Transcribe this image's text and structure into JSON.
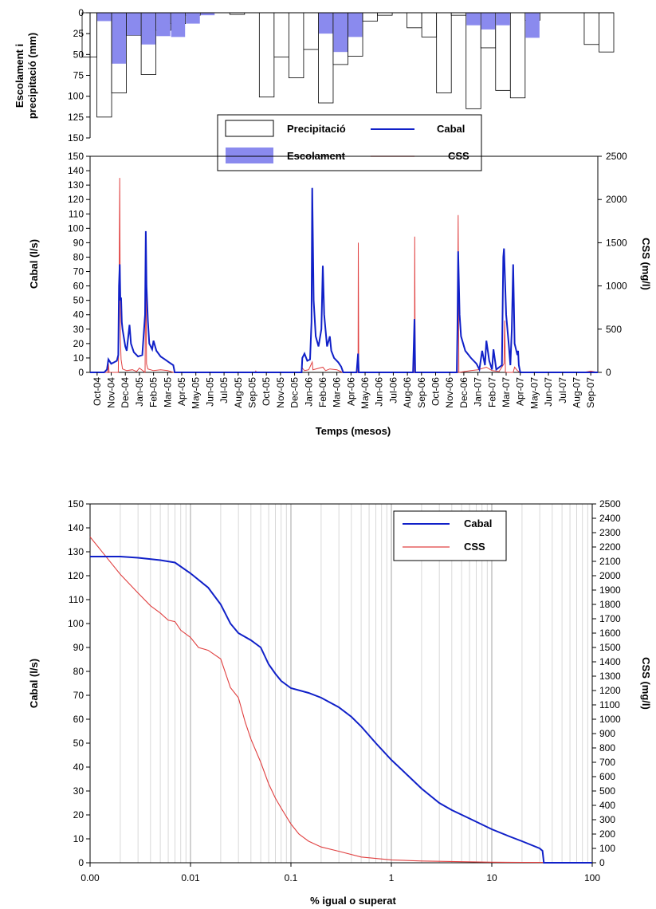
{
  "colors": {
    "precip_fill": "#ffffff",
    "runoff_fill": "#8a8aee",
    "flow": "#1020c8",
    "css": "#e04040",
    "grid": "#c8c8c8"
  },
  "chart_data": [
    {
      "type": "bar",
      "title": "",
      "ylabel_line1": "Escolament i",
      "ylabel_line2": "precipitació (mm)",
      "ylim": [
        150,
        0
      ],
      "yticks": [
        "0",
        "25",
        "50",
        "75",
        "100",
        "125",
        "150"
      ],
      "y_inverted": true,
      "grid": false,
      "series": [
        {
          "name": "Precipitació",
          "values": [
            53,
            125,
            96,
            27,
            74,
            21,
            13,
            3,
            0,
            0,
            2,
            0,
            101,
            53,
            78,
            44,
            108,
            62,
            52,
            10,
            3,
            0,
            18,
            29,
            96,
            3,
            115,
            42,
            93,
            102,
            9,
            0,
            0,
            0,
            38,
            47
          ]
        },
        {
          "name": "Escolament",
          "values": [
            0,
            10,
            61,
            27,
            38,
            28,
            29,
            13,
            3,
            0,
            0,
            0,
            0,
            0,
            0,
            0,
            25,
            47,
            29,
            0,
            0,
            0,
            0,
            0,
            0,
            0,
            15,
            20,
            15,
            0,
            30,
            0,
            0,
            0,
            0,
            0
          ]
        }
      ],
      "legend": {
        "placement": "bottom-center",
        "items": [
          {
            "label": "Precipitació",
            "kind": "empty-box"
          },
          {
            "label": "Cabal",
            "kind": "blue-line"
          },
          {
            "label": "Escolament",
            "kind": "filled-box"
          },
          {
            "label": "CSS",
            "kind": "red-line"
          }
        ]
      }
    },
    {
      "type": "line",
      "xlabel": "Temps (mesos)",
      "ylabel": "Cabal (l/s)",
      "ylabel_right": "CSS (mg/l)",
      "ylim": [
        0,
        150
      ],
      "ylim_right": [
        0,
        2500
      ],
      "yticks": [
        "0",
        "10",
        "20",
        "30",
        "40",
        "50",
        "60",
        "70",
        "80",
        "90",
        "100",
        "110",
        "120",
        "130",
        "140",
        "150"
      ],
      "yticks_right": [
        "0",
        "500",
        "1000",
        "1500",
        "2000",
        "2500"
      ],
      "grid": false,
      "x_months": [
        "Oct-04",
        "Nov-04",
        "Dec-04",
        "Jan-05",
        "Feb-05",
        "Mar-05",
        "Apr-05",
        "May-05",
        "Jun-05",
        "Jul-05",
        "Aug-05",
        "Sep-05",
        "Oct-05",
        "Nov-05",
        "Dec-05",
        "Jan-06",
        "Feb-06",
        "Mar-06",
        "Apr-06",
        "May-06",
        "Jun-06",
        "Jul-06",
        "Aug-06",
        "Sep-06",
        "Oct-06",
        "Nov-06",
        "Dec-06",
        "Jan-07",
        "Feb-07",
        "Mar-07",
        "Apr-07",
        "May-07",
        "Jun-07",
        "Jul-07",
        "Aug-07",
        "Sep-07"
      ],
      "series": [
        {
          "name": "Cabal",
          "axis": "left",
          "points": [
            [
              0,
              0
            ],
            [
              1,
              0
            ],
            [
              1.2,
              2
            ],
            [
              1.3,
              9
            ],
            [
              1.5,
              6
            ],
            [
              1.7,
              7
            ],
            [
              1.9,
              8
            ],
            [
              2.0,
              12
            ],
            [
              2.05,
              60
            ],
            [
              2.1,
              75
            ],
            [
              2.15,
              50
            ],
            [
              2.2,
              52
            ],
            [
              2.25,
              35
            ],
            [
              2.3,
              30
            ],
            [
              2.5,
              18
            ],
            [
              2.6,
              15
            ],
            [
              2.8,
              33
            ],
            [
              2.9,
              20
            ],
            [
              3.1,
              14
            ],
            [
              3.4,
              11
            ],
            [
              3.7,
              12
            ],
            [
              3.9,
              40
            ],
            [
              3.95,
              98
            ],
            [
              4.0,
              60
            ],
            [
              4.1,
              36
            ],
            [
              4.2,
              20
            ],
            [
              4.4,
              16
            ],
            [
              4.5,
              22
            ],
            [
              4.7,
              15
            ],
            [
              5.0,
              11
            ],
            [
              5.3,
              9
            ],
            [
              5.6,
              7
            ],
            [
              5.9,
              5
            ],
            [
              6.0,
              0
            ],
            [
              10,
              0
            ],
            [
              14,
              0
            ],
            [
              15.0,
              0
            ],
            [
              15.05,
              10
            ],
            [
              15.2,
              13
            ],
            [
              15.4,
              8
            ],
            [
              15.6,
              9
            ],
            [
              15.7,
              35
            ],
            [
              15.75,
              128
            ],
            [
              15.85,
              50
            ],
            [
              16.0,
              25
            ],
            [
              16.2,
              18
            ],
            [
              16.4,
              30
            ],
            [
              16.5,
              74
            ],
            [
              16.6,
              40
            ],
            [
              16.8,
              18
            ],
            [
              17.0,
              25
            ],
            [
              17.1,
              15
            ],
            [
              17.3,
              10
            ],
            [
              17.6,
              7
            ],
            [
              17.8,
              4
            ],
            [
              17.95,
              0
            ],
            [
              18.9,
              0
            ],
            [
              19.0,
              13
            ],
            [
              19.05,
              0
            ],
            [
              22.9,
              0
            ],
            [
              23.0,
              37
            ],
            [
              23.05,
              0
            ],
            [
              26.0,
              0
            ],
            [
              26.05,
              30
            ],
            [
              26.1,
              84
            ],
            [
              26.2,
              40
            ],
            [
              26.3,
              25
            ],
            [
              26.6,
              15
            ],
            [
              27.0,
              10
            ],
            [
              27.4,
              6
            ],
            [
              27.6,
              2
            ],
            [
              27.8,
              15
            ],
            [
              28.0,
              5
            ],
            [
              28.1,
              22
            ],
            [
              28.3,
              8
            ],
            [
              28.5,
              2
            ],
            [
              28.6,
              16
            ],
            [
              28.8,
              2
            ],
            [
              29.2,
              5
            ],
            [
              29.3,
              80
            ],
            [
              29.35,
              86
            ],
            [
              29.5,
              40
            ],
            [
              29.7,
              18
            ],
            [
              29.8,
              5
            ],
            [
              29.9,
              30
            ],
            [
              30.0,
              75
            ],
            [
              30.1,
              20
            ],
            [
              30.3,
              12
            ],
            [
              30.35,
              15
            ],
            [
              30.4,
              5
            ],
            [
              30.5,
              0
            ],
            [
              36,
              0
            ]
          ]
        },
        {
          "name": "CSS",
          "axis": "right",
          "points": [
            [
              0,
              0
            ],
            [
              1.25,
              0
            ],
            [
              1.3,
              100
            ],
            [
              1.35,
              0
            ],
            [
              2.0,
              0
            ],
            [
              2.05,
              700
            ],
            [
              2.1,
              2250
            ],
            [
              2.15,
              400
            ],
            [
              2.2,
              150
            ],
            [
              2.3,
              40
            ],
            [
              2.6,
              20
            ],
            [
              3.0,
              30
            ],
            [
              3.3,
              10
            ],
            [
              3.5,
              50
            ],
            [
              3.9,
              0
            ],
            [
              3.95,
              1400
            ],
            [
              4.0,
              100
            ],
            [
              4.1,
              40
            ],
            [
              4.5,
              20
            ],
            [
              5.0,
              30
            ],
            [
              5.5,
              20
            ],
            [
              5.9,
              0
            ],
            [
              11.7,
              0
            ],
            [
              11.75,
              15
            ],
            [
              11.8,
              0
            ],
            [
              15.0,
              0
            ],
            [
              15.05,
              50
            ],
            [
              15.2,
              20
            ],
            [
              15.5,
              30
            ],
            [
              15.75,
              120
            ],
            [
              15.8,
              30
            ],
            [
              16.5,
              60
            ],
            [
              16.7,
              20
            ],
            [
              17.0,
              40
            ],
            [
              17.5,
              30
            ],
            [
              17.9,
              0
            ],
            [
              19.0,
              0
            ],
            [
              19.02,
              1500
            ],
            [
              19.05,
              0
            ],
            [
              23.0,
              0
            ],
            [
              23.02,
              1570
            ],
            [
              23.05,
              0
            ],
            [
              26.05,
              0
            ],
            [
              26.1,
              1820
            ],
            [
              26.15,
              0
            ],
            [
              27.0,
              20
            ],
            [
              27.5,
              30
            ],
            [
              28.1,
              60
            ],
            [
              28.5,
              20
            ],
            [
              29.0,
              10
            ],
            [
              29.35,
              100
            ],
            [
              29.4,
              600
            ],
            [
              29.45,
              0
            ],
            [
              30.0,
              0
            ],
            [
              30.1,
              60
            ],
            [
              30.3,
              20
            ],
            [
              30.5,
              0
            ],
            [
              35.0,
              0
            ],
            [
              35.5,
              15
            ],
            [
              36,
              0
            ]
          ]
        }
      ]
    },
    {
      "type": "line",
      "xlabel": "%  igual o superat",
      "ylabel": "Cabal (l/s)",
      "ylabel_right": "CSS (mg/l)",
      "x_scale": "log",
      "xlim": [
        0.001,
        100
      ],
      "xticks": [
        "0.00",
        "0.01",
        "0.1",
        "1",
        "10",
        "100"
      ],
      "ylim": [
        0,
        150
      ],
      "ylim_right": [
        0,
        2500
      ],
      "yticks": [
        "0",
        "10",
        "20",
        "30",
        "40",
        "50",
        "60",
        "70",
        "80",
        "90",
        "100",
        "110",
        "120",
        "130",
        "140",
        "150"
      ],
      "yticks_right": [
        "0",
        "100",
        "200",
        "300",
        "400",
        "500",
        "600",
        "700",
        "800",
        "900",
        "1000",
        "1100",
        "1200",
        "1300",
        "1400",
        "1500",
        "1600",
        "1700",
        "1800",
        "1900",
        "2000",
        "2100",
        "2200",
        "2300",
        "2400",
        "2500"
      ],
      "grid": true,
      "legend": {
        "placement": "top-right",
        "items": [
          "Cabal",
          "CSS"
        ]
      },
      "series": [
        {
          "name": "Cabal",
          "axis": "left",
          "points": [
            [
              0.001,
              128
            ],
            [
              0.002,
              128
            ],
            [
              0.003,
              127.5
            ],
            [
              0.005,
              126.5
            ],
            [
              0.007,
              125.5
            ],
            [
              0.01,
              121
            ],
            [
              0.015,
              115
            ],
            [
              0.02,
              108
            ],
            [
              0.025,
              100
            ],
            [
              0.03,
              96
            ],
            [
              0.04,
              93
            ],
            [
              0.05,
              90
            ],
            [
              0.06,
              83
            ],
            [
              0.07,
              79
            ],
            [
              0.08,
              76
            ],
            [
              0.1,
              73
            ],
            [
              0.15,
              71
            ],
            [
              0.2,
              69
            ],
            [
              0.3,
              65
            ],
            [
              0.4,
              61
            ],
            [
              0.5,
              57
            ],
            [
              0.7,
              50
            ],
            [
              1.0,
              43
            ],
            [
              1.5,
              36
            ],
            [
              2,
              31
            ],
            [
              3,
              25
            ],
            [
              4,
              22
            ],
            [
              6,
              18.5
            ],
            [
              10,
              14
            ],
            [
              15,
              11
            ],
            [
              20,
              9
            ],
            [
              30,
              6
            ],
            [
              32,
              5
            ],
            [
              33,
              0
            ],
            [
              100,
              0
            ]
          ]
        },
        {
          "name": "CSS",
          "axis": "right",
          "points": [
            [
              0.001,
              2270
            ],
            [
              0.002,
              2010
            ],
            [
              0.003,
              1880
            ],
            [
              0.004,
              1790
            ],
            [
              0.005,
              1740
            ],
            [
              0.006,
              1690
            ],
            [
              0.007,
              1680
            ],
            [
              0.008,
              1620
            ],
            [
              0.01,
              1570
            ],
            [
              0.012,
              1500
            ],
            [
              0.015,
              1480
            ],
            [
              0.02,
              1420
            ],
            [
              0.025,
              1220
            ],
            [
              0.03,
              1150
            ],
            [
              0.035,
              980
            ],
            [
              0.04,
              860
            ],
            [
              0.05,
              700
            ],
            [
              0.06,
              550
            ],
            [
              0.07,
              450
            ],
            [
              0.08,
              380
            ],
            [
              0.1,
              270
            ],
            [
              0.12,
              200
            ],
            [
              0.15,
              150
            ],
            [
              0.2,
              110
            ],
            [
              0.3,
              80
            ],
            [
              0.5,
              40
            ],
            [
              1,
              20
            ],
            [
              2,
              12
            ],
            [
              5,
              7
            ],
            [
              10,
              4
            ],
            [
              20,
              3
            ],
            [
              30,
              2
            ],
            [
              100,
              0
            ]
          ]
        }
      ]
    }
  ]
}
